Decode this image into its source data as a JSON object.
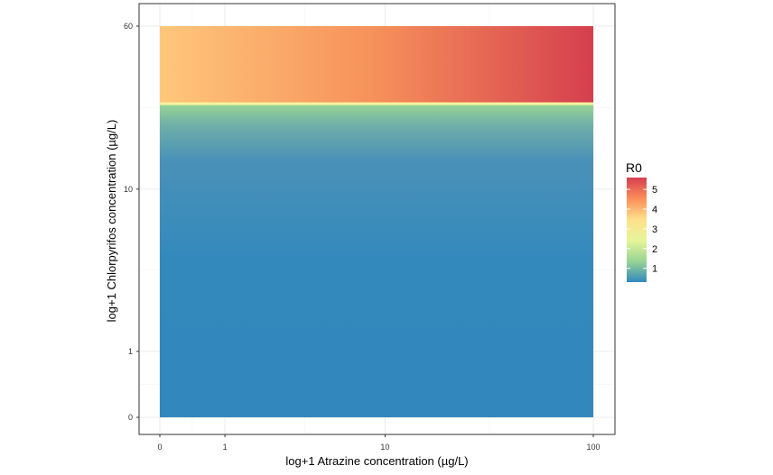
{
  "chart_data": {
    "type": "heatmap",
    "title": "",
    "xlabel": "log+1 Atrazine concentration (µg/L)",
    "ylabel": "log+1 Chlorpyrifos concentration (µg/L)",
    "x_scale": "log1p",
    "y_scale": "log1p",
    "xlim": [
      0,
      100
    ],
    "ylim": [
      0,
      60
    ],
    "x_ticks": [
      {
        "value": 0,
        "label": "0"
      },
      {
        "value": 1,
        "label": "1"
      },
      {
        "value": 10,
        "label": "10"
      },
      {
        "value": 100,
        "label": "100"
      }
    ],
    "y_ticks": [
      {
        "value": 0,
        "label": "0"
      },
      {
        "value": 1,
        "label": "1"
      },
      {
        "value": 10,
        "label": "10"
      },
      {
        "value": 60,
        "label": "60"
      }
    ],
    "grid": true,
    "legend": {
      "title": "R0",
      "position": "right",
      "range": [
        0.3,
        5.6
      ],
      "ticks": [
        {
          "value": 1,
          "label": "1"
        },
        {
          "value": 2,
          "label": "2"
        },
        {
          "value": 3,
          "label": "3"
        },
        {
          "value": 4,
          "label": "4"
        },
        {
          "value": 5,
          "label": "5"
        }
      ],
      "colorscale": [
        "#3288BD",
        "#99D594",
        "#E6F598",
        "#FEE08B",
        "#FC8D59",
        "#D53E4F"
      ]
    },
    "regions": [
      {
        "x_range": [
          0,
          100
        ],
        "y_range": [
          0,
          26
        ],
        "R0_at_y_start": 0.3,
        "R0_at_y_end": 2.0,
        "color_at_y_start": "#3288BD",
        "color_at_y_mid": "#4A91B8",
        "color_at_y_end": "#99D594",
        "varies_along": "y"
      },
      {
        "x_range": [
          0,
          100
        ],
        "y_range": [
          26,
          60
        ],
        "R0_at_x_start": 3.4,
        "R0_at_x_end": 5.5,
        "color_at_x_start": "#FFC77B",
        "color_at_x_mid": "#F6905A",
        "color_at_x_end": "#D53F4E",
        "boundary_color": "#F6F3A0",
        "varies_along": "x"
      }
    ]
  }
}
